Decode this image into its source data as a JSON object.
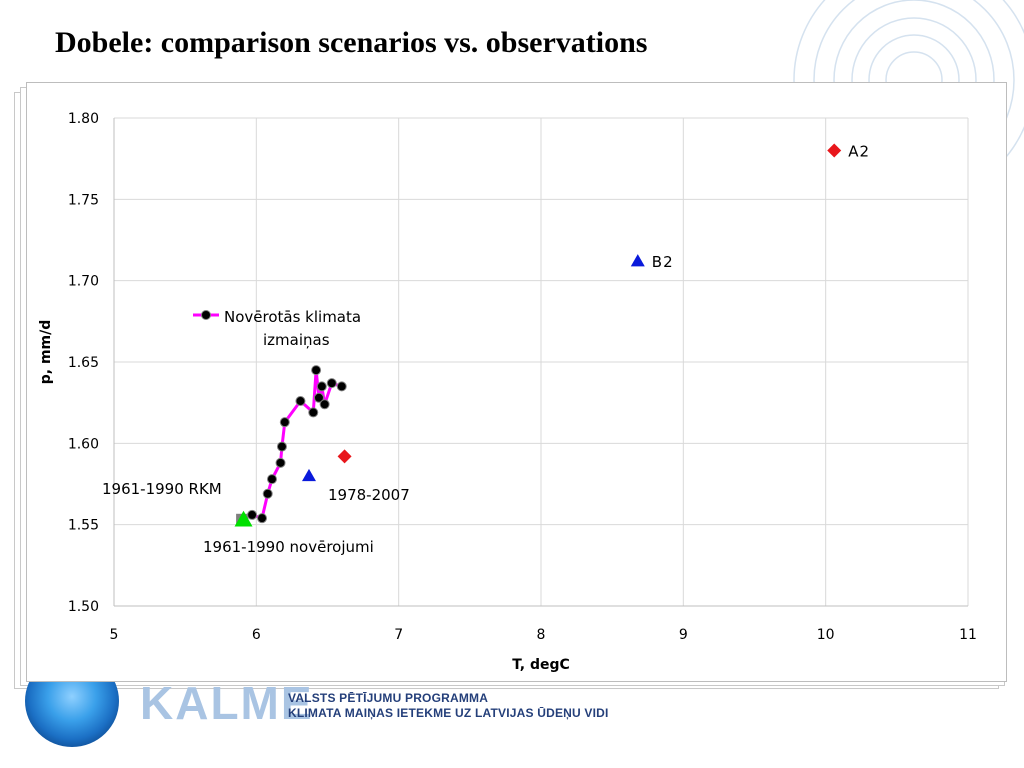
{
  "slide": {
    "title": "Dobele: comparison scenarios vs. observations"
  },
  "footer": {
    "logo_text": "KALME",
    "program_line1": "VALSTS PĒTĪJUMU PROGRAMMA",
    "program_line2": "KLIMATA MAIŅAS IETEKME UZ LATVIJAS ŪDEŅU VIDI"
  },
  "colors": {
    "observed_line": "#ff00ff",
    "observed_marker": "#000000",
    "scenario_a2": "#e8161b",
    "scenario_b2": "#0a1adb",
    "rcm_1961_1990": "#7f7f7f",
    "obs_1961_1990": "#00e000",
    "grid": "#d9d9d9"
  },
  "chart_data": {
    "type": "scatter",
    "xlabel": "T, degC",
    "ylabel": "p, mm/d",
    "xlim": [
      5,
      11
    ],
    "ylim": [
      1.5,
      1.8
    ],
    "x_ticks": [
      "5",
      "6",
      "7",
      "8",
      "9",
      "10",
      "11"
    ],
    "y_ticks": [
      "1.50",
      "1.55",
      "1.60",
      "1.65",
      "1.70",
      "1.75",
      "1.80"
    ],
    "grid": "vertical and horizontal",
    "legend": {
      "placement": "upper-left inside plot",
      "entries": [
        "Novērotās klimata izmaiņas"
      ]
    },
    "series": [
      {
        "name": "Novērotās klimata izmaiņas",
        "kind": "line-with-markers",
        "points": [
          [
            5.9,
            1.553
          ],
          [
            5.97,
            1.556
          ],
          [
            6.04,
            1.554
          ],
          [
            6.08,
            1.569
          ],
          [
            6.11,
            1.578
          ],
          [
            6.17,
            1.588
          ],
          [
            6.18,
            1.598
          ],
          [
            6.2,
            1.613
          ],
          [
            6.31,
            1.626
          ],
          [
            6.4,
            1.619
          ],
          [
            6.42,
            1.645
          ],
          [
            6.44,
            1.628
          ],
          [
            6.46,
            1.635
          ],
          [
            6.48,
            1.624
          ],
          [
            6.53,
            1.637
          ],
          [
            6.6,
            1.635
          ]
        ]
      }
    ],
    "scenario_points": [
      {
        "label": "A2",
        "marker": "diamond",
        "x": 10.06,
        "y": 1.78
      },
      {
        "label": "B2",
        "marker": "triangle",
        "x": 8.68,
        "y": 1.712
      },
      {
        "label": "1978-2007",
        "marker": "triangle",
        "x": 6.37,
        "y": 1.58
      },
      {
        "label": "1978-2007",
        "marker": "diamond",
        "x": 6.62,
        "y": 1.592
      },
      {
        "label": "1961-1990 RKM",
        "marker": "square",
        "x": 5.9,
        "y": 1.553
      },
      {
        "label": "1961-1990 novērojumi",
        "marker": "triangle",
        "x": 5.91,
        "y": 1.553
      }
    ],
    "annotations": {
      "a2": "A2",
      "b2": "B2",
      "period_1978_2007": "1978-2007",
      "rcm_1961_1990": "1961-1990 RKM",
      "obs_1961_1990": "1961-1990 novērojumi"
    }
  }
}
